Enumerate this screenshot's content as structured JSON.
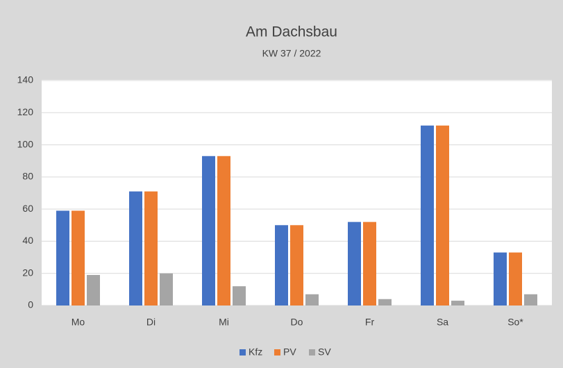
{
  "chart_data": {
    "type": "bar",
    "title": "Am Dachsbau",
    "subtitle": "KW 37 / 2022",
    "categories": [
      "Mo",
      "Di",
      "Mi",
      "Do",
      "Fr",
      "Sa",
      "So*"
    ],
    "series": [
      {
        "name": "Kfz",
        "color": "#4472c4",
        "values": [
          59,
          71,
          93,
          50,
          52,
          112,
          33
        ]
      },
      {
        "name": "PV",
        "color": "#ed7d31",
        "values": [
          59,
          71,
          93,
          50,
          52,
          112,
          33
        ]
      },
      {
        "name": "SV",
        "color": "#a5a5a5",
        "values": [
          19,
          20,
          12,
          7,
          4,
          3,
          7
        ]
      }
    ],
    "ylim": [
      0,
      140
    ],
    "yticks": [
      0,
      20,
      40,
      60,
      80,
      100,
      120,
      140
    ],
    "grid": true,
    "legend": "bottom"
  }
}
